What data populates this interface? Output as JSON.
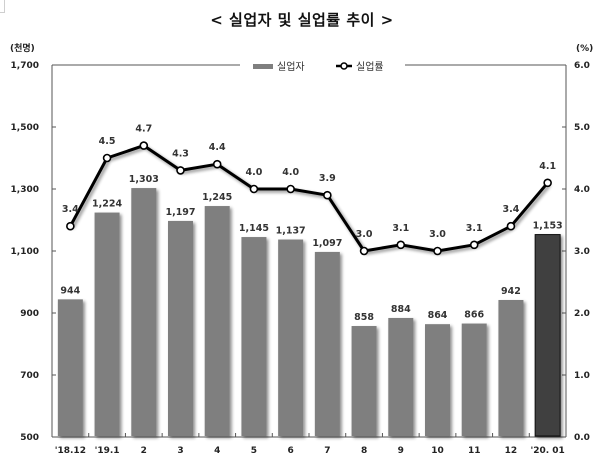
{
  "title": "< 실업자 및 실업률 추이 >",
  "chart_data": {
    "type": "bar+line",
    "title": "< 실업자 및 실업률 추이 >",
    "categories": [
      "'18.12",
      "'19.1",
      "2",
      "3",
      "4",
      "5",
      "6",
      "7",
      "8",
      "9",
      "10",
      "11",
      "12",
      "'20. 01"
    ],
    "series": [
      {
        "name": "실업자",
        "type": "bar",
        "axis": "left",
        "unit": "(천명)",
        "values": [
          944,
          1224,
          1303,
          1197,
          1245,
          1145,
          1137,
          1097,
          858,
          884,
          864,
          866,
          942,
          1153
        ],
        "labels": [
          "944",
          "1,224",
          "1,303",
          "1,197",
          "1,245",
          "1,145",
          "1,137",
          "1,097",
          "858",
          "884",
          "864",
          "866",
          "942",
          "1,153"
        ],
        "color": "#7f7f7f",
        "highlight_color": "#404040",
        "highlight_index": 13
      },
      {
        "name": "실업률",
        "type": "line",
        "axis": "right",
        "unit": "(%)",
        "values": [
          3.4,
          4.5,
          4.7,
          4.3,
          4.4,
          4.0,
          4.0,
          3.9,
          3.0,
          3.1,
          3.0,
          3.1,
          3.4,
          4.1
        ],
        "labels": [
          "3.4",
          "4.5",
          "4.7",
          "4.3",
          "4.4",
          "4.0",
          "4.0",
          "3.9",
          "3.0",
          "3.1",
          "3.0",
          "3.1",
          "3.4",
          "4.1"
        ],
        "color": "#000000"
      }
    ],
    "left_axis": {
      "label": "(천명)",
      "ylim": [
        500,
        1700
      ],
      "ticks": [
        500,
        700,
        900,
        1100,
        1300,
        1500,
        1700
      ],
      "tick_labels": [
        "500",
        "700",
        "900",
        "1,100",
        "1,300",
        "1,500",
        "1,700"
      ]
    },
    "right_axis": {
      "label": "(%)",
      "ylim": [
        0.0,
        6.0
      ],
      "ticks": [
        0,
        1,
        2,
        3,
        4,
        5,
        6
      ],
      "tick_labels": [
        "0.0",
        "1.0",
        "2.0",
        "3.0",
        "4.0",
        "5.0",
        "6.0"
      ]
    },
    "legend": {
      "position": "top-center",
      "entries": [
        "실업자",
        "실업률"
      ]
    },
    "grid": false
  }
}
